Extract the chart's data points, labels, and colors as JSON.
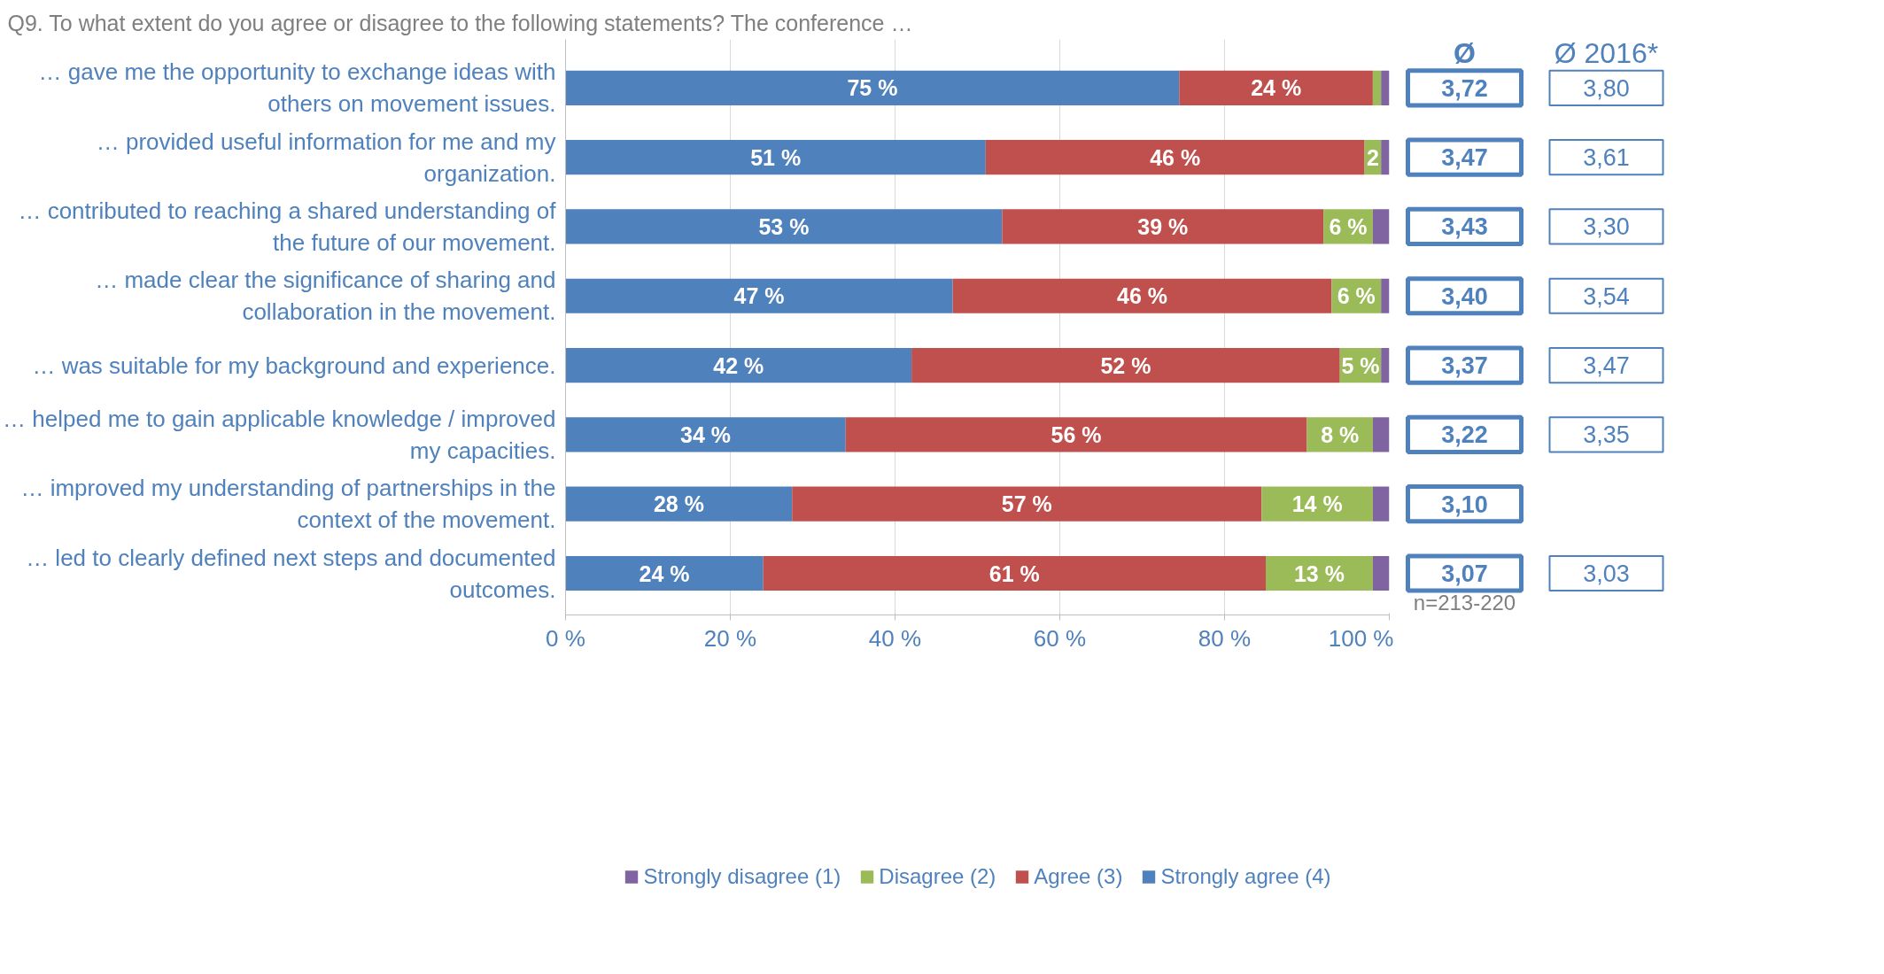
{
  "chart_data": [
    {
      "type": "bar",
      "orientation": "horizontal",
      "stacked": true,
      "title": "Q9. To what extent do you agree or disagree to the following statements? The conference …",
      "categories": [
        "… gave me the opportunity to exchange ideas with others on movement issues.",
        "… provided useful information for me and my organization.",
        "… contributed to reaching a shared understanding of the future of our movement.",
        "… made clear the significance of sharing and collaboration in the movement.",
        "… was suitable for my background and experience.",
        "… helped me to gain applicable knowledge / improved my capacities.",
        "… improved my understanding of partnerships in the context of the movement.",
        "… led to clearly defined next steps and documented outcomes."
      ],
      "series": [
        {
          "name": "Strongly agree (4)",
          "color": "#4f81bd",
          "values": [
            74.5,
            51,
            53,
            47,
            42,
            34,
            27.5,
            24
          ],
          "value_labels": [
            "75 %",
            "51 %",
            "53 %",
            "47 %",
            "42 %",
            "34 %",
            "28 %",
            "24 %"
          ]
        },
        {
          "name": "Agree (3)",
          "color": "#c0504d",
          "values": [
            23.5,
            46,
            39,
            46,
            52,
            56,
            57,
            61
          ],
          "value_labels": [
            "24 %",
            "46 %",
            "39 %",
            "46 %",
            "52 %",
            "56 %",
            "57 %",
            "61 %"
          ]
        },
        {
          "name": "Disagree (2)",
          "color": "#9bbb59",
          "values": [
            1,
            2,
            6,
            6,
            5,
            8,
            13.5,
            13
          ],
          "value_labels": [
            null,
            "2",
            "6 %",
            "6 %",
            "5 %",
            "8 %",
            "14 %",
            "13 %"
          ]
        },
        {
          "name": "Strongly disagree (1)",
          "color": "#8064a2",
          "values": [
            1,
            1,
            2,
            1,
            1,
            2,
            2,
            2
          ]
        }
      ],
      "xlim": [
        0,
        100
      ],
      "xticks": [
        {
          "value": 0,
          "label": "0 %"
        },
        {
          "value": 20,
          "label": "20 %"
        },
        {
          "value": 40,
          "label": "40 %"
        },
        {
          "value": 60,
          "label": "60 %"
        },
        {
          "value": 80,
          "label": "80 %"
        },
        {
          "value": 100,
          "label": "100 %"
        }
      ],
      "grid": "x",
      "legend": "bottom"
    },
    {
      "type": "other",
      "categories": [
        "Ø",
        "Ø 2016*"
      ],
      "cell_labels": [
        [
          "3,72",
          "3,80"
        ],
        [
          "3,47",
          "3,61"
        ],
        [
          "3,43",
          "3,30"
        ],
        [
          "3,40",
          "3,54"
        ],
        [
          "3,37",
          "3,47"
        ],
        [
          "3,22",
          "3,35"
        ],
        [
          "3,10",
          null
        ],
        [
          "3,07",
          "3,03"
        ]
      ],
      "annotations": [
        "n=213-220"
      ]
    }
  ]
}
